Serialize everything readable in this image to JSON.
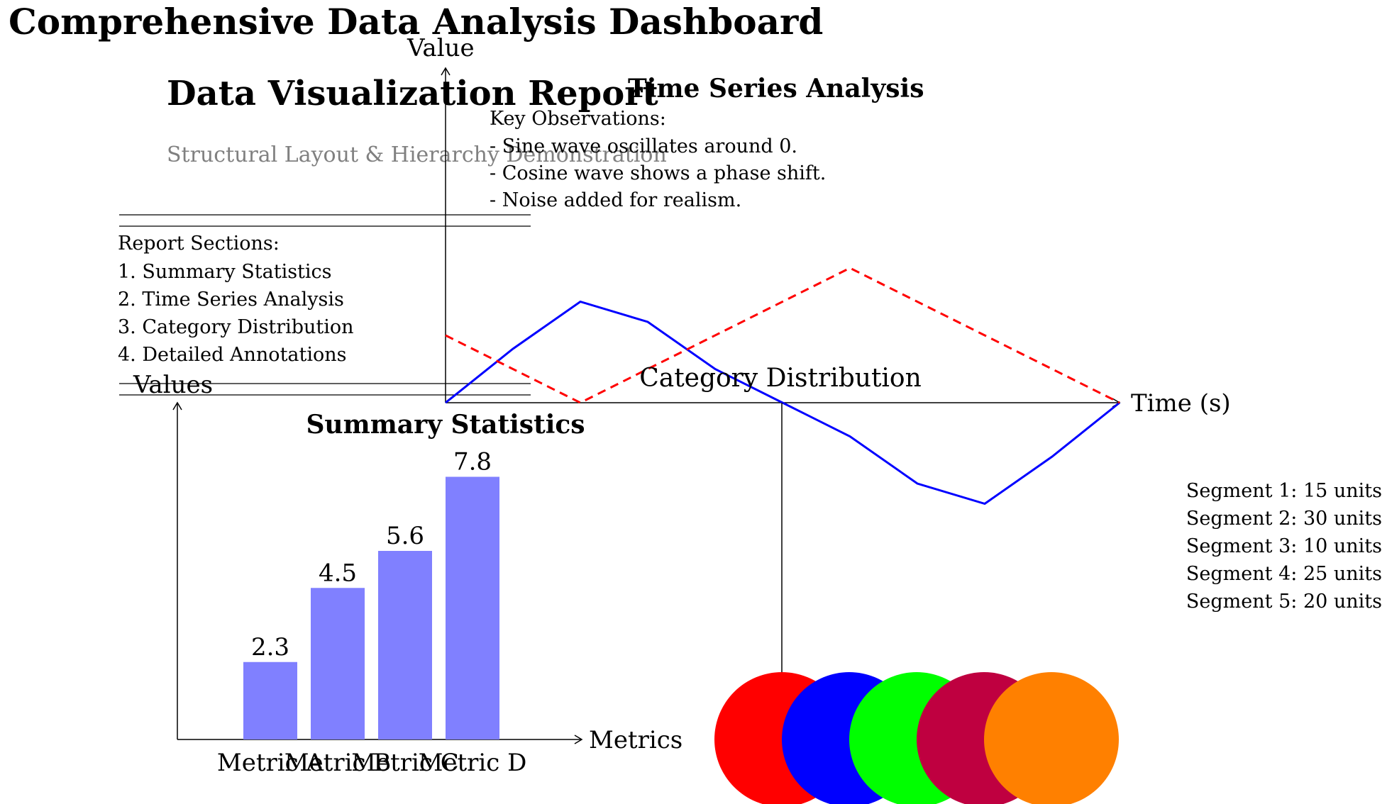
{
  "header": {
    "main_title": "Comprehensive Data Analysis Dashboard",
    "report_title": "Data Visualization Report",
    "subtitle": "Structural Layout & Hierarchy Demonstration"
  },
  "sections_box": {
    "heading": "Report Sections:",
    "items": [
      "1. Summary Statistics",
      "2. Time Series Analysis",
      "3. Category Distribution",
      "4. Detailed Annotations"
    ]
  },
  "time_series_panel": {
    "heading": "Time Series Analysis",
    "observations_heading": "Key Observations:",
    "observations": [
      "- Sine wave oscillates around 0.",
      "- Cosine wave shows a phase shift.",
      "- Noise added for realism."
    ]
  },
  "category_panel": {
    "heading": "Category Distribution",
    "legend": [
      "Segment 1: 15 units",
      "Segment 2: 30 units",
      "Segment 3: 10 units",
      "Segment 4: 25 units",
      "Segment 5: 20 units"
    ]
  },
  "colors": {
    "bar_fill": "#8080ff",
    "sine_line": "#0000ff",
    "cosine_line": "#ff0000",
    "circle_fills": [
      "#ff0000",
      "#0000ff",
      "#00ff00",
      "#bf0040",
      "#ff8000"
    ]
  },
  "chart_data": [
    {
      "type": "bar",
      "title": "Summary Statistics",
      "xlabel": "Metrics",
      "ylabel": "Values",
      "categories": [
        "Metric A",
        "Metric B",
        "Metric C",
        "Metric D"
      ],
      "values": [
        2.3,
        4.5,
        5.6,
        7.8
      ],
      "value_labels": [
        "2.3",
        "4.5",
        "5.6",
        "7.8"
      ],
      "ylim": [
        0,
        10
      ],
      "grid": false
    },
    {
      "type": "line",
      "title": "Time Series Analysis",
      "xlabel": "Time (s)",
      "ylabel": "Value",
      "x": [
        0,
        1,
        2,
        3,
        4,
        5,
        6,
        7,
        8,
        9,
        10
      ],
      "series": [
        {
          "values": [
            0,
            0.8,
            1.5,
            1.2,
            0.5,
            0,
            -0.5,
            -1.2,
            -1.5,
            -0.8,
            0
          ],
          "color": "#0000ff",
          "dash": "solid"
        },
        {
          "values": [
            1,
            null,
            0,
            null,
            null,
            null,
            2,
            null,
            null,
            null,
            0
          ],
          "color": "#ff0000",
          "dash": "dashed"
        }
      ],
      "xlim": [
        0,
        10
      ],
      "ylim": [
        -2,
        5
      ],
      "grid": false
    },
    {
      "type": "pie",
      "title": "Category Distribution",
      "categories": [
        "Segment 1",
        "Segment 2",
        "Segment 3",
        "Segment 4",
        "Segment 5"
      ],
      "values": [
        15,
        30,
        10,
        25,
        20
      ],
      "unit": "units"
    }
  ]
}
